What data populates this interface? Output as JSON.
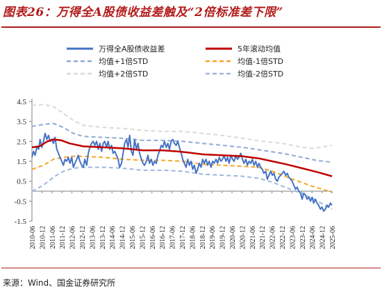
{
  "title": "图表26：万得全A股债收益差触及“2倍标准差下限”",
  "source": "来源：Wind、国金证券研究所",
  "chart_data": {
    "type": "line",
    "title": "万得全A股债收益差触及“2倍标准差下限”",
    "xlabel": "",
    "ylabel": "",
    "ylim": [
      -1.5,
      4.5
    ],
    "yticks": [
      4.5,
      3.5,
      2.5,
      1.5,
      0.5,
      -0.5,
      -1.5
    ],
    "xlim": [
      2010.42,
      2025.5
    ],
    "xtick_labels": [
      "2010-06",
      "2010-12",
      "2011-06",
      "2011-12",
      "2012-06",
      "2012-12",
      "2013-06",
      "2013-12",
      "2014-06",
      "2014-12",
      "2015-06",
      "2015-12",
      "2016-06",
      "2016-12",
      "2017-06",
      "2017-12",
      "2018-06",
      "2018-12",
      "2019-06",
      "2019-12",
      "2020-06",
      "2020-12",
      "2021-06",
      "2021-12",
      "2022-06",
      "2022-12",
      "2023-06",
      "2023-12",
      "2024-06",
      "2024-12",
      "2025-06"
    ],
    "grid": false,
    "legend_position": "top",
    "colors": {
      "spread": "#4472c4",
      "rolling_mean": "#c00000",
      "plus1": "#8fa9d6",
      "minus1": "#f5a623",
      "plus2": "#d9d9d9",
      "minus2": "#9fb6e0"
    },
    "series": [
      {
        "name": "万得全A股债收益差",
        "key": "spread",
        "style": "solid",
        "points": [
          [
            2010.42,
            1.7
          ],
          [
            2010.5,
            2.0
          ],
          [
            2010.58,
            1.8
          ],
          [
            2010.67,
            2.25
          ],
          [
            2010.75,
            2.1
          ],
          [
            2010.83,
            2.6
          ],
          [
            2010.92,
            2.2
          ],
          [
            2011.0,
            2.5
          ],
          [
            2011.08,
            2.9
          ],
          [
            2011.17,
            2.6
          ],
          [
            2011.25,
            2.8
          ],
          [
            2011.33,
            2.5
          ],
          [
            2011.42,
            2.6
          ],
          [
            2011.5,
            2.4
          ],
          [
            2011.58,
            2.7
          ],
          [
            2011.67,
            2.1
          ],
          [
            2011.75,
            1.9
          ],
          [
            2011.83,
            1.7
          ],
          [
            2011.92,
            1.5
          ],
          [
            2012.0,
            1.3
          ],
          [
            2012.08,
            1.6
          ],
          [
            2012.17,
            1.5
          ],
          [
            2012.25,
            1.7
          ],
          [
            2012.33,
            1.4
          ],
          [
            2012.42,
            1.7
          ],
          [
            2012.5,
            1.2
          ],
          [
            2012.58,
            1.4
          ],
          [
            2012.67,
            1.6
          ],
          [
            2012.75,
            1.8
          ],
          [
            2012.83,
            1.5
          ],
          [
            2012.92,
            1.3
          ],
          [
            2013.0,
            1.2
          ],
          [
            2013.08,
            1.6
          ],
          [
            2013.17,
            1.3
          ],
          [
            2013.25,
            1.9
          ],
          [
            2013.33,
            2.2
          ],
          [
            2013.42,
            2.4
          ],
          [
            2013.5,
            2.5
          ],
          [
            2013.58,
            2.3
          ],
          [
            2013.67,
            2.5
          ],
          [
            2013.75,
            2.1
          ],
          [
            2013.83,
            2.4
          ],
          [
            2013.92,
            2.0
          ],
          [
            2014.0,
            2.4
          ],
          [
            2014.08,
            2.5
          ],
          [
            2014.17,
            2.2
          ],
          [
            2014.25,
            2.5
          ],
          [
            2014.33,
            2.1
          ],
          [
            2014.42,
            2.3
          ],
          [
            2014.5,
            1.9
          ],
          [
            2014.58,
            2.0
          ],
          [
            2014.67,
            1.8
          ],
          [
            2014.75,
            1.6
          ],
          [
            2014.83,
            1.2
          ],
          [
            2014.92,
            1.4
          ],
          [
            2015.0,
            1.9
          ],
          [
            2015.08,
            2.4
          ],
          [
            2015.17,
            2.6
          ],
          [
            2015.25,
            2.2
          ],
          [
            2015.33,
            2.8
          ],
          [
            2015.42,
            2.0
          ],
          [
            2015.5,
            1.8
          ],
          [
            2015.58,
            2.6
          ],
          [
            2015.67,
            2.1
          ],
          [
            2015.75,
            2.4
          ],
          [
            2015.83,
            1.9
          ],
          [
            2015.92,
            1.6
          ],
          [
            2016.0,
            1.4
          ],
          [
            2016.08,
            1.3
          ],
          [
            2016.17,
            1.5
          ],
          [
            2016.25,
            1.8
          ],
          [
            2016.33,
            1.4
          ],
          [
            2016.42,
            1.6
          ],
          [
            2016.5,
            1.3
          ],
          [
            2016.58,
            1.5
          ],
          [
            2016.67,
            1.4
          ],
          [
            2016.75,
            1.8
          ],
          [
            2016.83,
            2.0
          ],
          [
            2016.92,
            2.3
          ],
          [
            2017.0,
            2.2
          ],
          [
            2017.08,
            2.5
          ],
          [
            2017.17,
            2.2
          ],
          [
            2017.25,
            2.4
          ],
          [
            2017.33,
            2.1
          ],
          [
            2017.42,
            2.5
          ],
          [
            2017.5,
            2.6
          ],
          [
            2017.58,
            2.4
          ],
          [
            2017.67,
            2.3
          ],
          [
            2017.75,
            2.5
          ],
          [
            2017.83,
            2.2
          ],
          [
            2017.92,
            1.9
          ],
          [
            2018.0,
            1.6
          ],
          [
            2018.08,
            1.4
          ],
          [
            2018.17,
            1.2
          ],
          [
            2018.25,
            1.6
          ],
          [
            2018.33,
            1.3
          ],
          [
            2018.42,
            1.5
          ],
          [
            2018.5,
            1.1
          ],
          [
            2018.58,
            1.3
          ],
          [
            2018.67,
            0.9
          ],
          [
            2018.75,
            1.1
          ],
          [
            2018.83,
            1.4
          ],
          [
            2018.92,
            1.2
          ],
          [
            2019.0,
            1.6
          ],
          [
            2019.08,
            1.4
          ],
          [
            2019.17,
            1.6
          ],
          [
            2019.25,
            1.3
          ],
          [
            2019.33,
            1.5
          ],
          [
            2019.42,
            1.2
          ],
          [
            2019.5,
            1.5
          ],
          [
            2019.58,
            1.4
          ],
          [
            2019.67,
            1.6
          ],
          [
            2019.75,
            1.4
          ],
          [
            2019.83,
            1.7
          ],
          [
            2019.92,
            1.5
          ],
          [
            2020.0,
            1.6
          ],
          [
            2020.08,
            1.8
          ],
          [
            2020.17,
            1.5
          ],
          [
            2020.25,
            1.7
          ],
          [
            2020.33,
            1.4
          ],
          [
            2020.42,
            1.8
          ],
          [
            2020.5,
            1.6
          ],
          [
            2020.58,
            1.5
          ],
          [
            2020.67,
            1.8
          ],
          [
            2020.75,
            1.6
          ],
          [
            2020.83,
            1.7
          ],
          [
            2020.92,
            1.9
          ],
          [
            2021.0,
            1.6
          ],
          [
            2021.08,
            1.4
          ],
          [
            2021.17,
            1.6
          ],
          [
            2021.25,
            1.3
          ],
          [
            2021.33,
            1.5
          ],
          [
            2021.42,
            1.4
          ],
          [
            2021.5,
            1.6
          ],
          [
            2021.58,
            1.3
          ],
          [
            2021.67,
            1.5
          ],
          [
            2021.75,
            1.2
          ],
          [
            2021.83,
            1.4
          ],
          [
            2021.92,
            1.2
          ],
          [
            2022.0,
            1.1
          ],
          [
            2022.08,
            0.9
          ],
          [
            2022.17,
            1.0
          ],
          [
            2022.25,
            0.6
          ],
          [
            2022.33,
            0.8
          ],
          [
            2022.42,
            1.0
          ],
          [
            2022.5,
            0.8
          ],
          [
            2022.58,
            0.9
          ],
          [
            2022.67,
            0.6
          ],
          [
            2022.75,
            0.5
          ],
          [
            2022.83,
            0.7
          ],
          [
            2022.92,
            0.8
          ],
          [
            2023.0,
            0.9
          ],
          [
            2023.08,
            1.0
          ],
          [
            2023.17,
            0.8
          ],
          [
            2023.25,
            0.9
          ],
          [
            2023.33,
            0.7
          ],
          [
            2023.42,
            0.6
          ],
          [
            2023.5,
            0.5
          ],
          [
            2023.58,
            0.3
          ],
          [
            2023.67,
            0.1
          ],
          [
            2023.75,
            0.2
          ],
          [
            2023.83,
            0.0
          ],
          [
            2023.92,
            -0.1
          ],
          [
            2024.0,
            -0.4
          ],
          [
            2024.08,
            -0.1
          ],
          [
            2024.17,
            -0.2
          ],
          [
            2024.25,
            -0.4
          ],
          [
            2024.33,
            -0.3
          ],
          [
            2024.42,
            -0.5
          ],
          [
            2024.5,
            -0.3
          ],
          [
            2024.58,
            -0.6
          ],
          [
            2024.67,
            -0.4
          ],
          [
            2024.75,
            -0.6
          ],
          [
            2024.83,
            -0.7
          ],
          [
            2024.92,
            -0.9
          ],
          [
            2025.0,
            -0.8
          ],
          [
            2025.08,
            -1.0
          ],
          [
            2025.17,
            -0.9
          ],
          [
            2025.25,
            -0.7
          ],
          [
            2025.33,
            -0.8
          ],
          [
            2025.42,
            -0.6
          ],
          [
            2025.5,
            -0.7
          ]
        ]
      },
      {
        "name": "5年滚动均值",
        "key": "rolling_mean",
        "style": "solid",
        "points": [
          [
            2010.42,
            2.2
          ],
          [
            2010.8,
            2.25
          ],
          [
            2011.2,
            2.5
          ],
          [
            2011.5,
            2.6
          ],
          [
            2011.9,
            2.55
          ],
          [
            2012.3,
            2.4
          ],
          [
            2013.0,
            2.25
          ],
          [
            2014.0,
            2.2
          ],
          [
            2015.0,
            2.15
          ],
          [
            2016.0,
            2.05
          ],
          [
            2017.0,
            2.05
          ],
          [
            2017.7,
            2.0
          ],
          [
            2018.2,
            1.95
          ],
          [
            2019.0,
            1.85
          ],
          [
            2020.0,
            1.8
          ],
          [
            2021.0,
            1.75
          ],
          [
            2021.8,
            1.65
          ],
          [
            2022.5,
            1.5
          ],
          [
            2023.2,
            1.35
          ],
          [
            2024.0,
            1.15
          ],
          [
            2024.8,
            0.95
          ],
          [
            2025.5,
            0.75
          ]
        ]
      },
      {
        "name": "均值+1倍STD",
        "key": "plus1",
        "style": "dashed",
        "points": [
          [
            2010.42,
            3.25
          ],
          [
            2011.0,
            3.35
          ],
          [
            2011.5,
            3.4
          ],
          [
            2012.0,
            3.2
          ],
          [
            2012.5,
            2.9
          ],
          [
            2013.0,
            2.75
          ],
          [
            2014.0,
            2.7
          ],
          [
            2015.0,
            2.65
          ],
          [
            2016.0,
            2.55
          ],
          [
            2017.0,
            2.55
          ],
          [
            2018.0,
            2.5
          ],
          [
            2019.0,
            2.4
          ],
          [
            2020.0,
            2.3
          ],
          [
            2021.0,
            2.2
          ],
          [
            2022.0,
            2.05
          ],
          [
            2023.0,
            1.9
          ],
          [
            2024.0,
            1.7
          ],
          [
            2024.7,
            1.55
          ],
          [
            2025.5,
            1.45
          ]
        ]
      },
      {
        "name": "均值-1倍STD",
        "key": "minus1",
        "style": "dashed",
        "points": [
          [
            2010.42,
            1.1
          ],
          [
            2011.0,
            1.3
          ],
          [
            2011.5,
            1.6
          ],
          [
            2012.0,
            1.7
          ],
          [
            2012.5,
            1.75
          ],
          [
            2013.0,
            1.75
          ],
          [
            2014.0,
            1.7
          ],
          [
            2015.0,
            1.6
          ],
          [
            2016.0,
            1.55
          ],
          [
            2017.0,
            1.55
          ],
          [
            2018.0,
            1.5
          ],
          [
            2019.0,
            1.35
          ],
          [
            2020.0,
            1.3
          ],
          [
            2021.0,
            1.25
          ],
          [
            2021.8,
            1.2
          ],
          [
            2022.5,
            1.0
          ],
          [
            2023.0,
            0.8
          ],
          [
            2023.8,
            0.5
          ],
          [
            2024.5,
            0.25
          ],
          [
            2025.5,
            -0.05
          ]
        ]
      },
      {
        "name": "均值+2倍STD",
        "key": "plus2",
        "style": "dashed",
        "points": [
          [
            2010.42,
            4.3
          ],
          [
            2011.0,
            4.35
          ],
          [
            2011.5,
            4.25
          ],
          [
            2012.0,
            3.9
          ],
          [
            2012.5,
            3.55
          ],
          [
            2013.0,
            3.3
          ],
          [
            2014.0,
            3.2
          ],
          [
            2015.0,
            3.15
          ],
          [
            2016.0,
            3.05
          ],
          [
            2017.0,
            3.0
          ],
          [
            2018.0,
            3.0
          ],
          [
            2019.0,
            2.9
          ],
          [
            2020.0,
            2.8
          ],
          [
            2021.0,
            2.65
          ],
          [
            2022.0,
            2.5
          ],
          [
            2023.0,
            2.4
          ],
          [
            2024.0,
            2.2
          ],
          [
            2024.6,
            2.15
          ],
          [
            2025.5,
            2.3
          ]
        ]
      },
      {
        "name": "均值-2倍STD",
        "key": "minus2",
        "style": "dashed",
        "points": [
          [
            2010.42,
            0.0
          ],
          [
            2011.0,
            0.3
          ],
          [
            2011.5,
            0.7
          ],
          [
            2012.0,
            1.0
          ],
          [
            2012.5,
            1.15
          ],
          [
            2013.0,
            1.2
          ],
          [
            2014.0,
            1.2
          ],
          [
            2015.0,
            1.15
          ],
          [
            2016.0,
            1.05
          ],
          [
            2017.0,
            1.05
          ],
          [
            2018.0,
            1.0
          ],
          [
            2019.0,
            0.85
          ],
          [
            2020.0,
            0.8
          ],
          [
            2021.0,
            0.75
          ],
          [
            2021.8,
            0.65
          ],
          [
            2022.5,
            0.45
          ],
          [
            2023.0,
            0.25
          ],
          [
            2023.8,
            -0.05
          ],
          [
            2024.5,
            -0.35
          ],
          [
            2025.5,
            -0.9
          ]
        ]
      }
    ]
  }
}
